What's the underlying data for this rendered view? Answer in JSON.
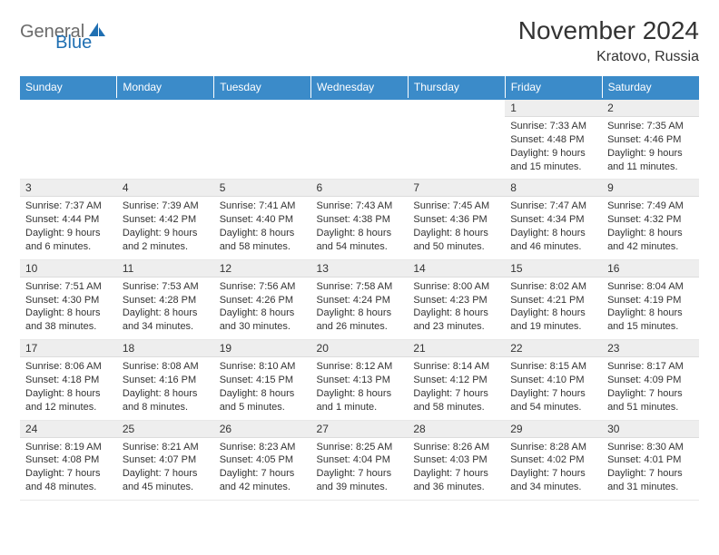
{
  "logo": {
    "part1": "General",
    "part2": "Blue"
  },
  "title": "November 2024",
  "location": "Kratovo, Russia",
  "weekdays": [
    "Sunday",
    "Monday",
    "Tuesday",
    "Wednesday",
    "Thursday",
    "Friday",
    "Saturday"
  ],
  "colors": {
    "header_bg": "#3b8bc9",
    "header_text": "#ffffff",
    "daynum_bg": "#eeeeee",
    "text": "#333333",
    "logo_gray": "#6a6a6a",
    "logo_blue": "#1f6fb2"
  },
  "weeks": [
    [
      null,
      null,
      null,
      null,
      null,
      {
        "n": "1",
        "sr": "Sunrise: 7:33 AM",
        "ss": "Sunset: 4:48 PM",
        "dl": "Daylight: 9 hours and 15 minutes."
      },
      {
        "n": "2",
        "sr": "Sunrise: 7:35 AM",
        "ss": "Sunset: 4:46 PM",
        "dl": "Daylight: 9 hours and 11 minutes."
      }
    ],
    [
      {
        "n": "3",
        "sr": "Sunrise: 7:37 AM",
        "ss": "Sunset: 4:44 PM",
        "dl": "Daylight: 9 hours and 6 minutes."
      },
      {
        "n": "4",
        "sr": "Sunrise: 7:39 AM",
        "ss": "Sunset: 4:42 PM",
        "dl": "Daylight: 9 hours and 2 minutes."
      },
      {
        "n": "5",
        "sr": "Sunrise: 7:41 AM",
        "ss": "Sunset: 4:40 PM",
        "dl": "Daylight: 8 hours and 58 minutes."
      },
      {
        "n": "6",
        "sr": "Sunrise: 7:43 AM",
        "ss": "Sunset: 4:38 PM",
        "dl": "Daylight: 8 hours and 54 minutes."
      },
      {
        "n": "7",
        "sr": "Sunrise: 7:45 AM",
        "ss": "Sunset: 4:36 PM",
        "dl": "Daylight: 8 hours and 50 minutes."
      },
      {
        "n": "8",
        "sr": "Sunrise: 7:47 AM",
        "ss": "Sunset: 4:34 PM",
        "dl": "Daylight: 8 hours and 46 minutes."
      },
      {
        "n": "9",
        "sr": "Sunrise: 7:49 AM",
        "ss": "Sunset: 4:32 PM",
        "dl": "Daylight: 8 hours and 42 minutes."
      }
    ],
    [
      {
        "n": "10",
        "sr": "Sunrise: 7:51 AM",
        "ss": "Sunset: 4:30 PM",
        "dl": "Daylight: 8 hours and 38 minutes."
      },
      {
        "n": "11",
        "sr": "Sunrise: 7:53 AM",
        "ss": "Sunset: 4:28 PM",
        "dl": "Daylight: 8 hours and 34 minutes."
      },
      {
        "n": "12",
        "sr": "Sunrise: 7:56 AM",
        "ss": "Sunset: 4:26 PM",
        "dl": "Daylight: 8 hours and 30 minutes."
      },
      {
        "n": "13",
        "sr": "Sunrise: 7:58 AM",
        "ss": "Sunset: 4:24 PM",
        "dl": "Daylight: 8 hours and 26 minutes."
      },
      {
        "n": "14",
        "sr": "Sunrise: 8:00 AM",
        "ss": "Sunset: 4:23 PM",
        "dl": "Daylight: 8 hours and 23 minutes."
      },
      {
        "n": "15",
        "sr": "Sunrise: 8:02 AM",
        "ss": "Sunset: 4:21 PM",
        "dl": "Daylight: 8 hours and 19 minutes."
      },
      {
        "n": "16",
        "sr": "Sunrise: 8:04 AM",
        "ss": "Sunset: 4:19 PM",
        "dl": "Daylight: 8 hours and 15 minutes."
      }
    ],
    [
      {
        "n": "17",
        "sr": "Sunrise: 8:06 AM",
        "ss": "Sunset: 4:18 PM",
        "dl": "Daylight: 8 hours and 12 minutes."
      },
      {
        "n": "18",
        "sr": "Sunrise: 8:08 AM",
        "ss": "Sunset: 4:16 PM",
        "dl": "Daylight: 8 hours and 8 minutes."
      },
      {
        "n": "19",
        "sr": "Sunrise: 8:10 AM",
        "ss": "Sunset: 4:15 PM",
        "dl": "Daylight: 8 hours and 5 minutes."
      },
      {
        "n": "20",
        "sr": "Sunrise: 8:12 AM",
        "ss": "Sunset: 4:13 PM",
        "dl": "Daylight: 8 hours and 1 minute."
      },
      {
        "n": "21",
        "sr": "Sunrise: 8:14 AM",
        "ss": "Sunset: 4:12 PM",
        "dl": "Daylight: 7 hours and 58 minutes."
      },
      {
        "n": "22",
        "sr": "Sunrise: 8:15 AM",
        "ss": "Sunset: 4:10 PM",
        "dl": "Daylight: 7 hours and 54 minutes."
      },
      {
        "n": "23",
        "sr": "Sunrise: 8:17 AM",
        "ss": "Sunset: 4:09 PM",
        "dl": "Daylight: 7 hours and 51 minutes."
      }
    ],
    [
      {
        "n": "24",
        "sr": "Sunrise: 8:19 AM",
        "ss": "Sunset: 4:08 PM",
        "dl": "Daylight: 7 hours and 48 minutes."
      },
      {
        "n": "25",
        "sr": "Sunrise: 8:21 AM",
        "ss": "Sunset: 4:07 PM",
        "dl": "Daylight: 7 hours and 45 minutes."
      },
      {
        "n": "26",
        "sr": "Sunrise: 8:23 AM",
        "ss": "Sunset: 4:05 PM",
        "dl": "Daylight: 7 hours and 42 minutes."
      },
      {
        "n": "27",
        "sr": "Sunrise: 8:25 AM",
        "ss": "Sunset: 4:04 PM",
        "dl": "Daylight: 7 hours and 39 minutes."
      },
      {
        "n": "28",
        "sr": "Sunrise: 8:26 AM",
        "ss": "Sunset: 4:03 PM",
        "dl": "Daylight: 7 hours and 36 minutes."
      },
      {
        "n": "29",
        "sr": "Sunrise: 8:28 AM",
        "ss": "Sunset: 4:02 PM",
        "dl": "Daylight: 7 hours and 34 minutes."
      },
      {
        "n": "30",
        "sr": "Sunrise: 8:30 AM",
        "ss": "Sunset: 4:01 PM",
        "dl": "Daylight: 7 hours and 31 minutes."
      }
    ]
  ]
}
